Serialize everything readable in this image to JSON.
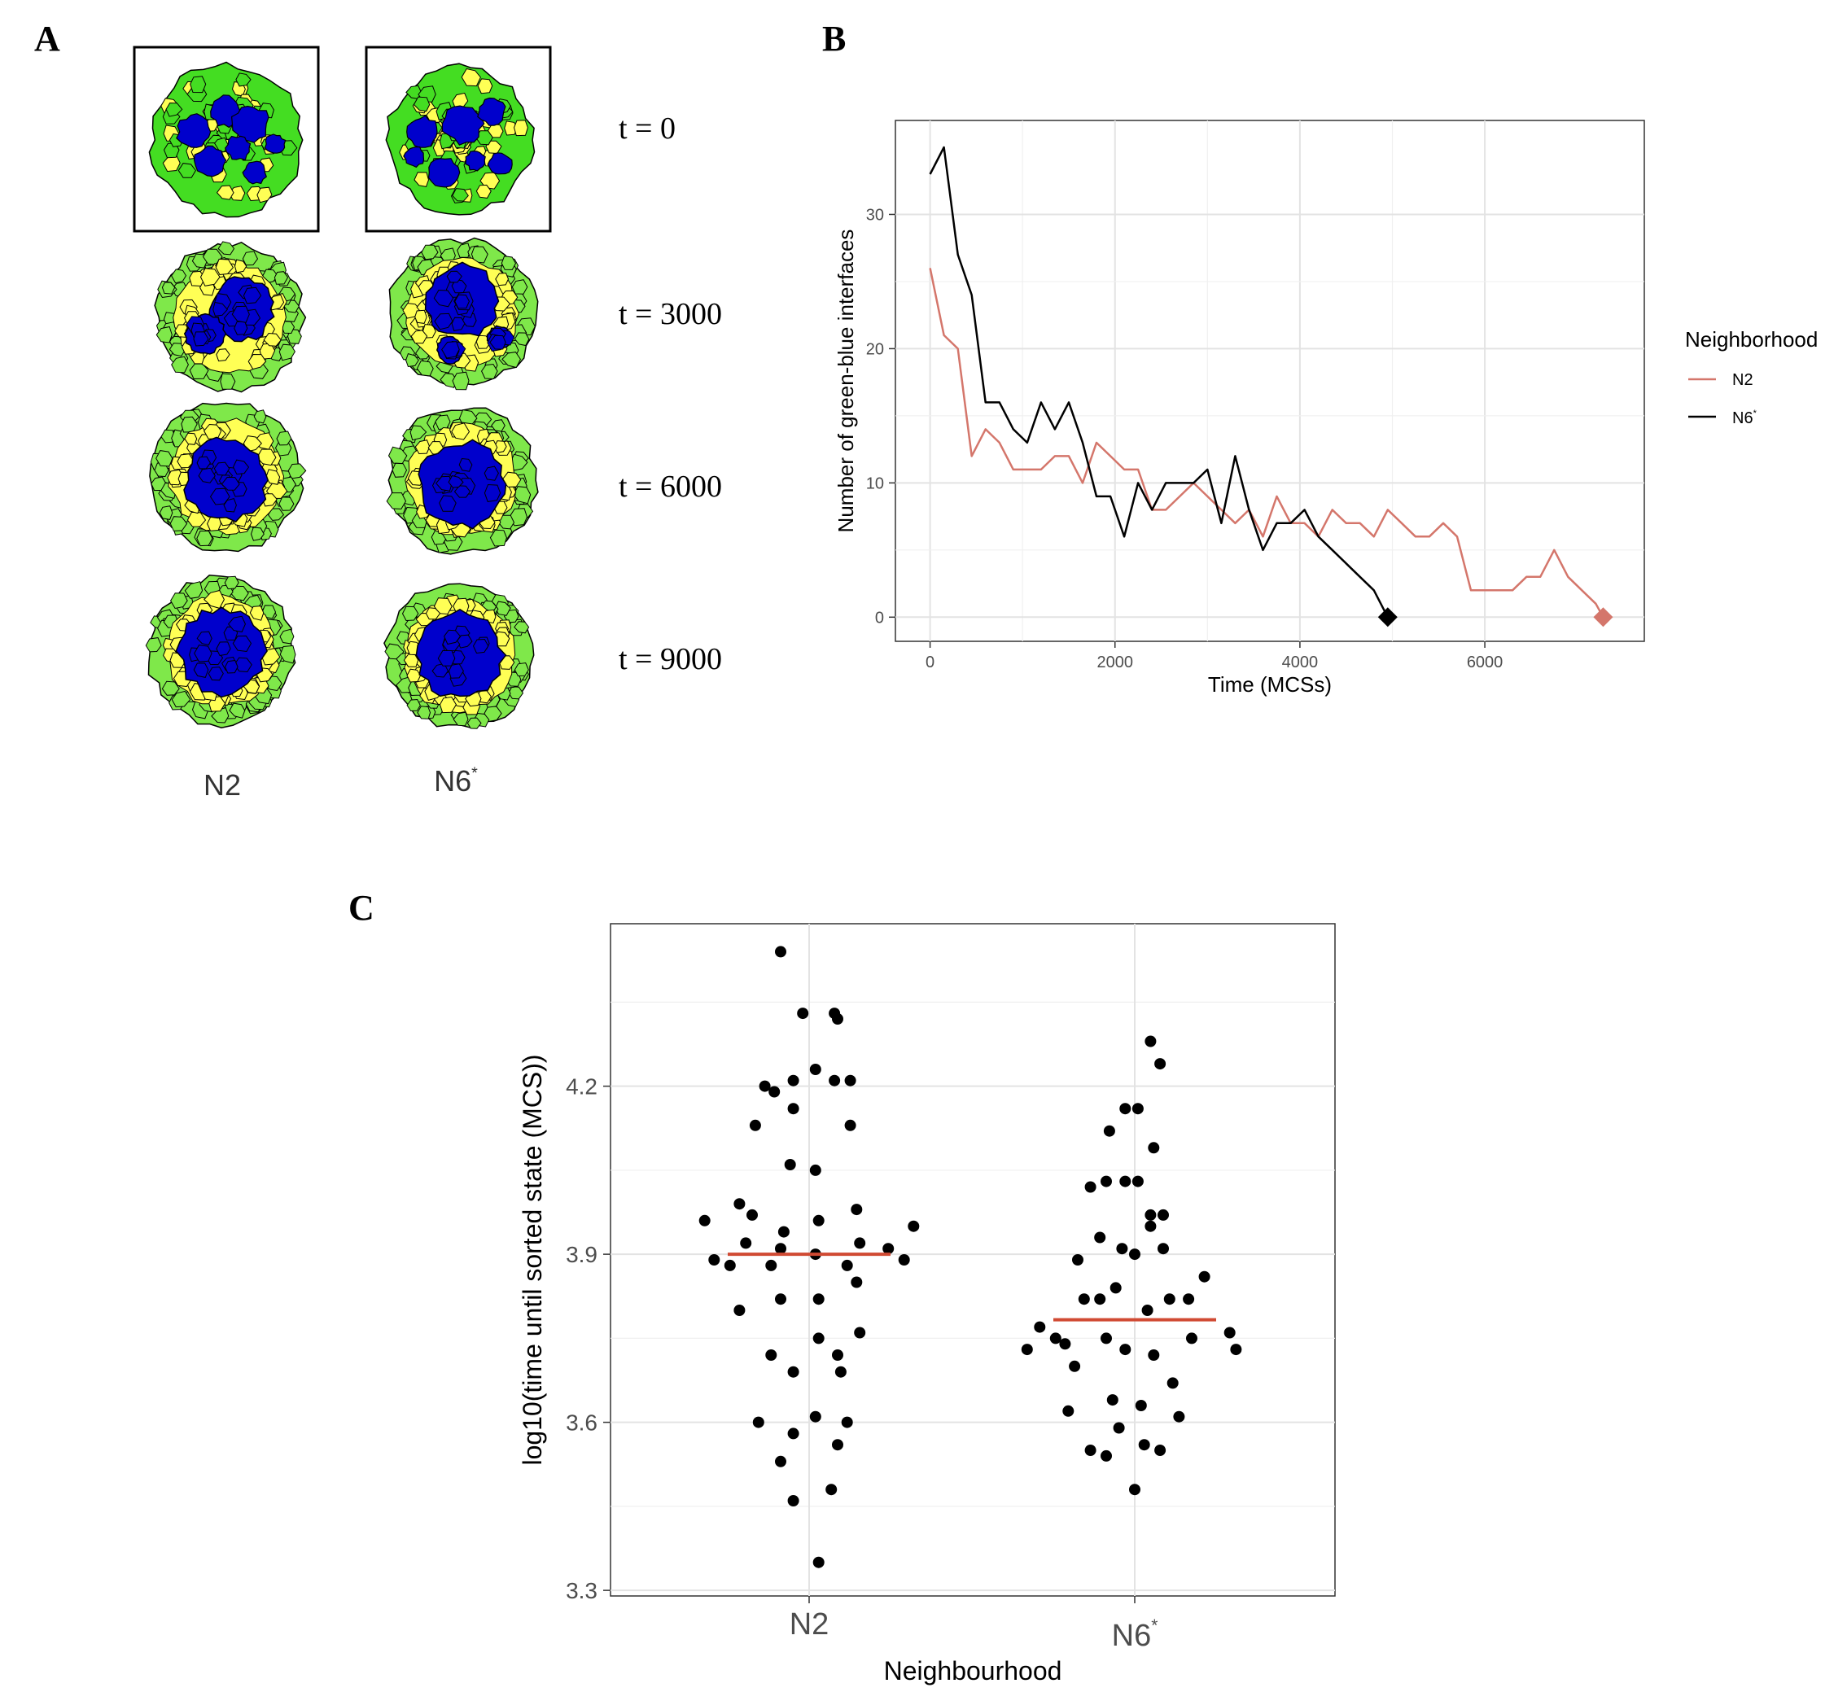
{
  "panels": {
    "a": "A",
    "b": "B",
    "c": "C"
  },
  "panel_a": {
    "time_labels": [
      "t = 0",
      "t = 3000",
      "t = 6000",
      "t = 9000"
    ],
    "columns": [
      {
        "base": "N2",
        "sup": ""
      },
      {
        "base": "N6",
        "sup": "*"
      }
    ],
    "colors": {
      "blue": "#0000cc",
      "yellow": "#ffff55",
      "green": "#44dd22",
      "light_green": "#7fe84a",
      "outline": "#000000"
    }
  },
  "chart_data": [
    {
      "type": "line",
      "panel": "B",
      "xlabel": "Time (MCSs)",
      "ylabel": "Number of green-blue interfaces",
      "xlim": [
        -375,
        7725
      ],
      "ylim": [
        -1.8,
        37
      ],
      "xticks": [
        0,
        2000,
        4000,
        6000
      ],
      "yticks": [
        0,
        10,
        20,
        30
      ],
      "grid": true,
      "legend": {
        "title": "Neighborhood",
        "placement": "right"
      },
      "series": [
        {
          "name": "N2",
          "sup": "",
          "color": "#d4766b",
          "x": [
            0,
            150,
            300,
            450,
            600,
            750,
            900,
            1050,
            1200,
            1350,
            1500,
            1650,
            1800,
            1950,
            2100,
            2250,
            2400,
            2550,
            2700,
            2850,
            3000,
            3150,
            3300,
            3450,
            3600,
            3750,
            3900,
            4050,
            4200,
            4350,
            4500,
            4650,
            4800,
            4950,
            5100,
            5250,
            5400,
            5550,
            5700,
            5850,
            6000,
            6150,
            6300,
            6450,
            6600,
            6750,
            6900,
            7050,
            7200,
            7280
          ],
          "y": [
            26,
            21,
            20,
            12,
            14,
            13,
            11,
            11,
            11,
            12,
            12,
            10,
            13,
            12,
            11,
            11,
            8,
            8,
            9,
            10,
            9,
            8,
            7,
            8,
            6,
            9,
            7,
            7,
            6,
            8,
            7,
            7,
            6,
            8,
            7,
            6,
            6,
            7,
            6,
            2,
            2,
            2,
            2,
            3,
            3,
            5,
            3,
            2,
            1,
            0
          ],
          "end_marker": {
            "x": 7280,
            "y": 0
          }
        },
        {
          "name": "N6",
          "sup": "*",
          "color": "#000000",
          "x": [
            0,
            150,
            300,
            450,
            600,
            750,
            900,
            1050,
            1200,
            1350,
            1500,
            1650,
            1800,
            1950,
            2100,
            2250,
            2400,
            2550,
            2700,
            2850,
            3000,
            3150,
            3300,
            3450,
            3600,
            3750,
            3900,
            4050,
            4200,
            4350,
            4500,
            4650,
            4800,
            4950
          ],
          "y": [
            33,
            35,
            27,
            24,
            16,
            16,
            14,
            13,
            16,
            14,
            16,
            13,
            9,
            9,
            6,
            10,
            8,
            10,
            10,
            10,
            11,
            7,
            12,
            8,
            5,
            7,
            7,
            8,
            6,
            5,
            4,
            3,
            2,
            0
          ],
          "end_marker": {
            "x": 4950,
            "y": 0
          }
        }
      ]
    },
    {
      "type": "scatter",
      "panel": "C",
      "xlabel": "Neighbourhood",
      "ylabel": "log10(time until sorted state (MCS))",
      "ylim": [
        3.29,
        4.49
      ],
      "yticks": [
        3.3,
        3.6,
        3.9,
        4.2
      ],
      "grid": true,
      "categories": [
        {
          "base": "N2",
          "sup": ""
        },
        {
          "base": "N6",
          "sup": "*"
        }
      ],
      "median_color": "#d04a33",
      "medians": [
        3.9,
        3.783
      ],
      "points": [
        [
          [
            -0.09,
            4.44
          ],
          [
            -0.02,
            4.33
          ],
          [
            0.08,
            4.33
          ],
          [
            0.09,
            4.32
          ],
          [
            -0.05,
            4.21
          ],
          [
            0.02,
            4.23
          ],
          [
            0.13,
            4.21
          ],
          [
            0.08,
            4.21
          ],
          [
            -0.14,
            4.2
          ],
          [
            -0.11,
            4.19
          ],
          [
            -0.05,
            4.16
          ],
          [
            -0.17,
            4.13
          ],
          [
            0.13,
            4.13
          ],
          [
            -0.06,
            4.06
          ],
          [
            0.02,
            4.05
          ],
          [
            -0.33,
            3.96
          ],
          [
            -0.22,
            3.99
          ],
          [
            -0.18,
            3.97
          ],
          [
            -0.08,
            3.94
          ],
          [
            0.03,
            3.96
          ],
          [
            0.15,
            3.98
          ],
          [
            0.33,
            3.95
          ],
          [
            -0.3,
            3.89
          ],
          [
            -0.25,
            3.88
          ],
          [
            -0.2,
            3.92
          ],
          [
            -0.09,
            3.91
          ],
          [
            -0.12,
            3.88
          ],
          [
            0.02,
            3.9
          ],
          [
            0.16,
            3.92
          ],
          [
            0.25,
            3.91
          ],
          [
            0.3,
            3.89
          ],
          [
            0.12,
            3.88
          ],
          [
            0.15,
            3.85
          ],
          [
            -0.22,
            3.8
          ],
          [
            -0.09,
            3.82
          ],
          [
            0.03,
            3.82
          ],
          [
            0.16,
            3.76
          ],
          [
            -0.12,
            3.72
          ],
          [
            0.03,
            3.75
          ],
          [
            -0.05,
            3.69
          ],
          [
            0.09,
            3.72
          ],
          [
            0.1,
            3.69
          ],
          [
            -0.16,
            3.6
          ],
          [
            -0.05,
            3.58
          ],
          [
            0.02,
            3.61
          ],
          [
            0.09,
            3.56
          ],
          [
            0.12,
            3.6
          ],
          [
            -0.09,
            3.53
          ],
          [
            -0.05,
            3.46
          ],
          [
            0.07,
            3.48
          ],
          [
            0.03,
            3.35
          ]
        ],
        [
          [
            0.05,
            4.28
          ],
          [
            0.08,
            4.24
          ],
          [
            -0.03,
            4.16
          ],
          [
            -0.08,
            4.12
          ],
          [
            0.01,
            4.16
          ],
          [
            0.06,
            4.09
          ],
          [
            -0.14,
            4.02
          ],
          [
            -0.09,
            4.03
          ],
          [
            -0.03,
            4.03
          ],
          [
            0.01,
            4.03
          ],
          [
            0.05,
            3.97
          ],
          [
            0.09,
            3.97
          ],
          [
            -0.18,
            3.89
          ],
          [
            -0.11,
            3.93
          ],
          [
            -0.04,
            3.91
          ],
          [
            0.0,
            3.9
          ],
          [
            0.05,
            3.95
          ],
          [
            0.09,
            3.91
          ],
          [
            -0.3,
            3.77
          ],
          [
            -0.25,
            3.75
          ],
          [
            -0.16,
            3.82
          ],
          [
            -0.11,
            3.82
          ],
          [
            -0.06,
            3.84
          ],
          [
            0.04,
            3.8
          ],
          [
            0.11,
            3.82
          ],
          [
            0.17,
            3.82
          ],
          [
            0.22,
            3.86
          ],
          [
            -0.34,
            3.73
          ],
          [
            -0.22,
            3.74
          ],
          [
            -0.19,
            3.7
          ],
          [
            -0.09,
            3.75
          ],
          [
            -0.03,
            3.73
          ],
          [
            0.06,
            3.72
          ],
          [
            0.18,
            3.75
          ],
          [
            0.3,
            3.76
          ],
          [
            0.32,
            3.73
          ],
          [
            -0.21,
            3.62
          ],
          [
            -0.07,
            3.64
          ],
          [
            0.02,
            3.63
          ],
          [
            0.12,
            3.67
          ],
          [
            0.14,
            3.61
          ],
          [
            -0.14,
            3.55
          ],
          [
            -0.05,
            3.59
          ],
          [
            0.03,
            3.56
          ],
          [
            0.08,
            3.55
          ],
          [
            -0.09,
            3.54
          ],
          [
            0.0,
            3.48
          ]
        ]
      ]
    }
  ]
}
